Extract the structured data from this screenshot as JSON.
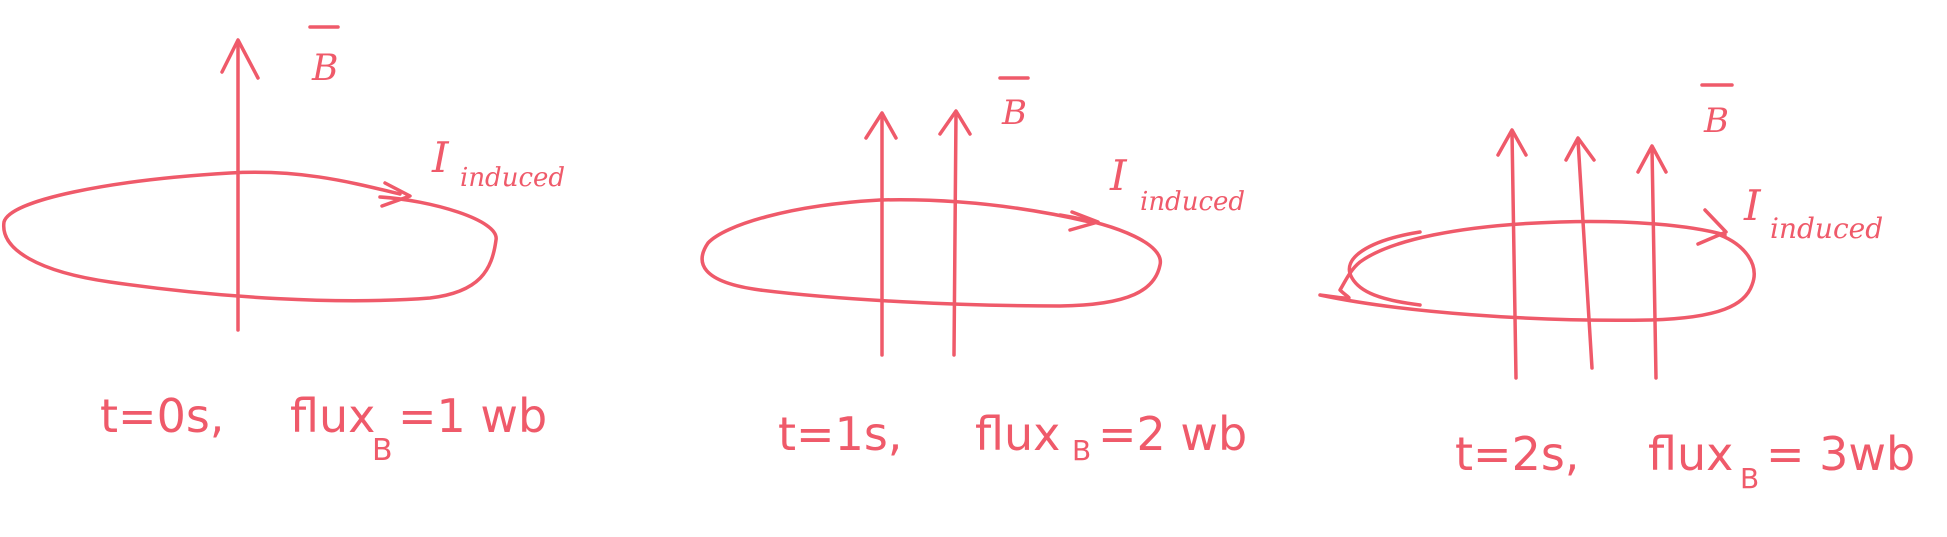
{
  "colors": {
    "ink": "#ef5a6a",
    "background": "#ffffff"
  },
  "panels": [
    {
      "field_label": "B",
      "current_symbol": "I",
      "current_subscript": "induced",
      "caption": {
        "t": "t=0s,",
        "flux": "flux",
        "sub": "B",
        "value": "=1 wb"
      }
    },
    {
      "field_label": "B",
      "current_symbol": "I",
      "current_subscript": "induced",
      "caption": {
        "t": "t=1s,",
        "flux": "flux",
        "sub": "B",
        "value": "=2 wb"
      }
    },
    {
      "field_label": "B",
      "current_symbol": "I",
      "current_subscript": "induced",
      "caption": {
        "t": "t=2s,",
        "flux": "flux",
        "sub": "B",
        "value": "= 3wb"
      }
    }
  ]
}
